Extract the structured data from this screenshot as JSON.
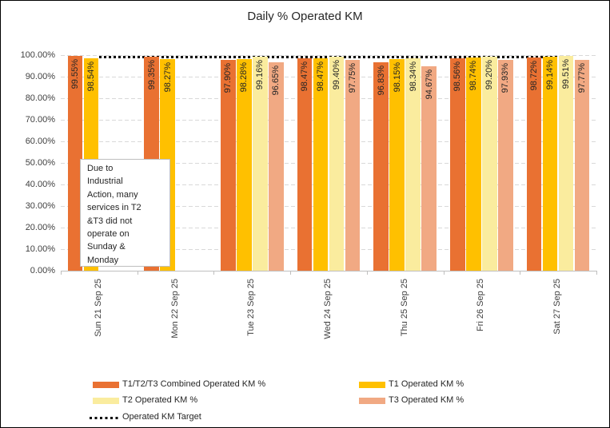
{
  "title": "Daily % Operated KM",
  "chart_data": {
    "type": "bar",
    "title": "Daily % Operated KM",
    "categories": [
      "Sun 21 Sep 25",
      "Mon 22 Sep 25",
      "Tue 23 Sep 25",
      "Wed 24 Sep 25",
      "Thu 25 Sep 25",
      "Fri 26 Sep 25",
      "Sat 27 Sep 25"
    ],
    "series": [
      {
        "name": "T1/T2/T3 Combined Operated KM %",
        "color": "#E97132",
        "values": [
          99.55,
          99.35,
          97.9,
          98.47,
          96.83,
          98.56,
          98.72
        ]
      },
      {
        "name": "T1 Operated KM %",
        "color": "#FFC000",
        "values": [
          98.54,
          98.27,
          98.28,
          98.47,
          98.15,
          98.74,
          99.14
        ]
      },
      {
        "name": "T2 Operated KM %",
        "color": "#FAEC9E",
        "values": [
          null,
          null,
          99.16,
          99.4,
          98.34,
          99.2,
          99.51
        ]
      },
      {
        "name": "T3 Operated KM %",
        "color": "#F1A983",
        "values": [
          null,
          null,
          96.65,
          97.75,
          94.67,
          97.93,
          97.77
        ]
      }
    ],
    "target_line": {
      "name": "Operated KM Target",
      "value": 99,
      "color": "#000000",
      "style": "dotted"
    },
    "xlabel": "",
    "ylabel": "",
    "ylim": [
      0,
      100
    ],
    "y_ticks": [
      "0.00%",
      "10.00%",
      "20.00%",
      "30.00%",
      "40.00%",
      "50.00%",
      "60.00%",
      "70.00%",
      "80.00%",
      "90.00%",
      "100.00%"
    ],
    "data_labels": true,
    "data_label_format": "0.00%",
    "grid": "horizontal-dashed",
    "legend_position": "bottom"
  },
  "annotation": {
    "text": "Due to Industrial Action, many services in T2 &T3 did not operate on Sunday & Monday",
    "lines": [
      "Due to",
      "Industrial",
      "Action, many",
      "services in T2",
      "&T3 did not",
      "operate on",
      "Sunday &",
      "Monday"
    ]
  },
  "legend": {
    "items": [
      {
        "label": "T1/T2/T3 Combined Operated KM %",
        "swatch": "rect",
        "color": "#E97132"
      },
      {
        "label": "T1 Operated KM %",
        "swatch": "rect",
        "color": "#FFC000"
      },
      {
        "label": "T2 Operated KM %",
        "swatch": "rect",
        "color": "#FAEC9E"
      },
      {
        "label": "T3 Operated KM %",
        "swatch": "rect",
        "color": "#F1A983"
      },
      {
        "label": "Operated KM Target",
        "swatch": "dotted-line",
        "color": "#000000"
      }
    ]
  }
}
